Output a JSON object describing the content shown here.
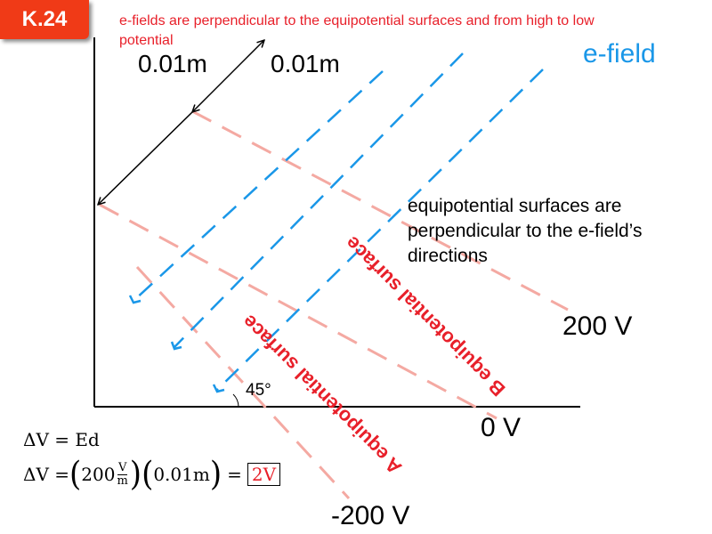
{
  "slide": {
    "tag": "K.24",
    "note": "e-fields are perpendicular to the equipotential surfaces and from high to low potential"
  },
  "labels": {
    "spacing_1": "0.01m",
    "spacing_2": "0.01m",
    "efield": "e-field",
    "equipotential_note": "equipotential surfaces are perpendicular to the e-field’s directions",
    "angle": "45°",
    "surface_b": "B equipotential surface",
    "surface_a": "A equipotential surface",
    "potential_high": "200 V",
    "potential_zero": "0 V",
    "potential_low": "-200 V"
  },
  "formula": {
    "line1": "ΔV = Ed",
    "lhs": "ΔV =",
    "value": "200",
    "unit_num": "V",
    "unit_den": "m",
    "distance": "0.01m",
    "equals": "=",
    "result": "2V"
  },
  "colors": {
    "tag_bg": "#f03a17",
    "note_text": "#e8202a",
    "efield": "#1a97e8",
    "equipotential": "#f4a9a2",
    "surface_label": "#e8202a"
  }
}
